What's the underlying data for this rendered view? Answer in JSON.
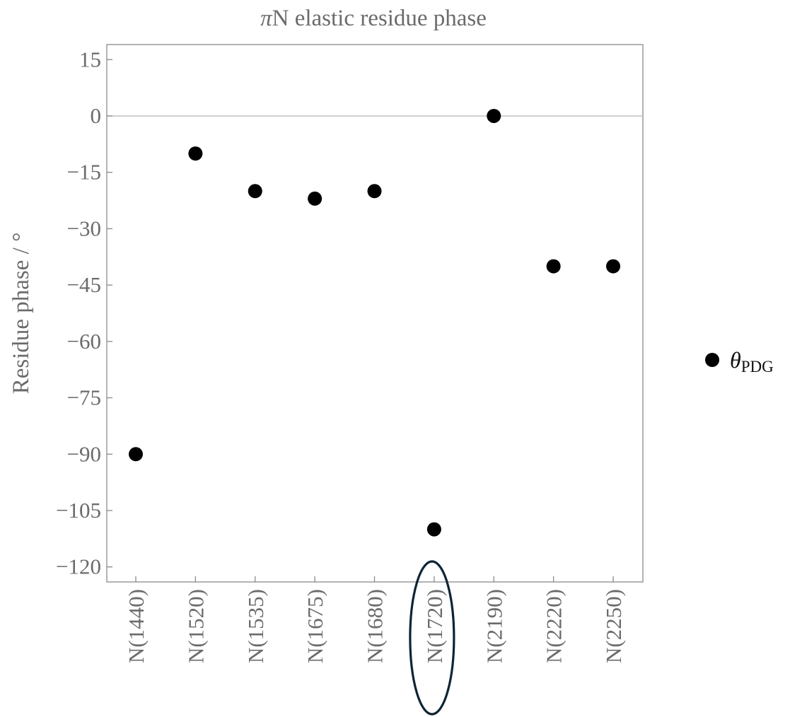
{
  "chart_data": {
    "type": "scatter",
    "title": "πN elastic residue phase",
    "title_parts": {
      "symbol": "π",
      "rest": "N elastic residue phase"
    },
    "xlabel": "",
    "ylabel": "Residue phase / °",
    "categories": [
      "N(1440)",
      "N(1520)",
      "N(1535)",
      "N(1675)",
      "N(1680)",
      "N(1720)",
      "N(2190)",
      "N(2220)",
      "N(2250)"
    ],
    "series": [
      {
        "name": "θPDG",
        "name_parts": {
          "symbol": "θ",
          "subscript": "PDG"
        },
        "color": "#000000",
        "values": [
          -90,
          -10,
          -20,
          -22,
          -20,
          -110,
          0,
          -40,
          -40
        ]
      }
    ],
    "ylim": [
      -124,
      19
    ],
    "yticks": [
      15,
      0,
      -15,
      -30,
      -45,
      -60,
      -75,
      -90,
      -105,
      -120
    ],
    "ytick_labels": [
      "15",
      "0",
      "−15",
      "−30",
      "−45",
      "−60",
      "−75",
      "−90",
      "−105",
      "−120"
    ],
    "zero_line": true,
    "grid": false,
    "legend_position": "right",
    "highlighted_category": "N(1720)",
    "highlight_color": "#0d2535"
  }
}
